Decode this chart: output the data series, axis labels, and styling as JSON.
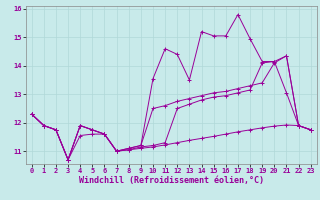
{
  "xlabel": "Windchill (Refroidissement éolien,°C)",
  "background_color": "#c8eaea",
  "grid_color": "#b0d8d8",
  "line_color": "#990099",
  "x_values": [
    0,
    1,
    2,
    3,
    4,
    5,
    6,
    7,
    8,
    9,
    10,
    11,
    12,
    13,
    14,
    15,
    16,
    17,
    18,
    19,
    20,
    21,
    22,
    23
  ],
  "line1": [
    12.3,
    11.9,
    11.75,
    10.7,
    11.55,
    11.6,
    11.6,
    11.0,
    11.05,
    11.1,
    11.15,
    11.22,
    11.3,
    11.38,
    11.45,
    11.52,
    11.6,
    11.68,
    11.75,
    11.82,
    11.88,
    11.92,
    11.9,
    11.75
  ],
  "line2": [
    12.3,
    11.9,
    11.75,
    10.7,
    11.9,
    11.75,
    11.6,
    11.0,
    11.1,
    11.2,
    12.5,
    12.6,
    12.75,
    12.85,
    12.95,
    13.05,
    13.1,
    13.2,
    13.3,
    13.4,
    14.1,
    14.35,
    11.9,
    11.75
  ],
  "line3": [
    12.3,
    11.9,
    11.75,
    10.7,
    11.9,
    11.75,
    11.6,
    11.0,
    11.1,
    11.2,
    13.55,
    14.6,
    14.4,
    13.5,
    15.2,
    15.05,
    15.05,
    15.8,
    14.95,
    14.15,
    14.15,
    13.05,
    11.9,
    11.75
  ],
  "line4": [
    12.3,
    11.9,
    11.75,
    10.7,
    11.9,
    11.75,
    11.6,
    11.0,
    11.05,
    11.15,
    11.2,
    11.3,
    12.5,
    12.65,
    12.8,
    12.9,
    12.95,
    13.05,
    13.15,
    14.1,
    14.15,
    14.35,
    11.9,
    11.75
  ],
  "ylim": [
    10.55,
    16.1
  ],
  "yticks": [
    11,
    12,
    13,
    14,
    15,
    16
  ],
  "xticks": [
    0,
    1,
    2,
    3,
    4,
    5,
    6,
    7,
    8,
    9,
    10,
    11,
    12,
    13,
    14,
    15,
    16,
    17,
    18,
    19,
    20,
    21,
    22,
    23
  ],
  "tick_fontsize": 5,
  "xlabel_fontsize": 6,
  "marker": "+",
  "marker_size": 3,
  "linewidth": 0.7
}
